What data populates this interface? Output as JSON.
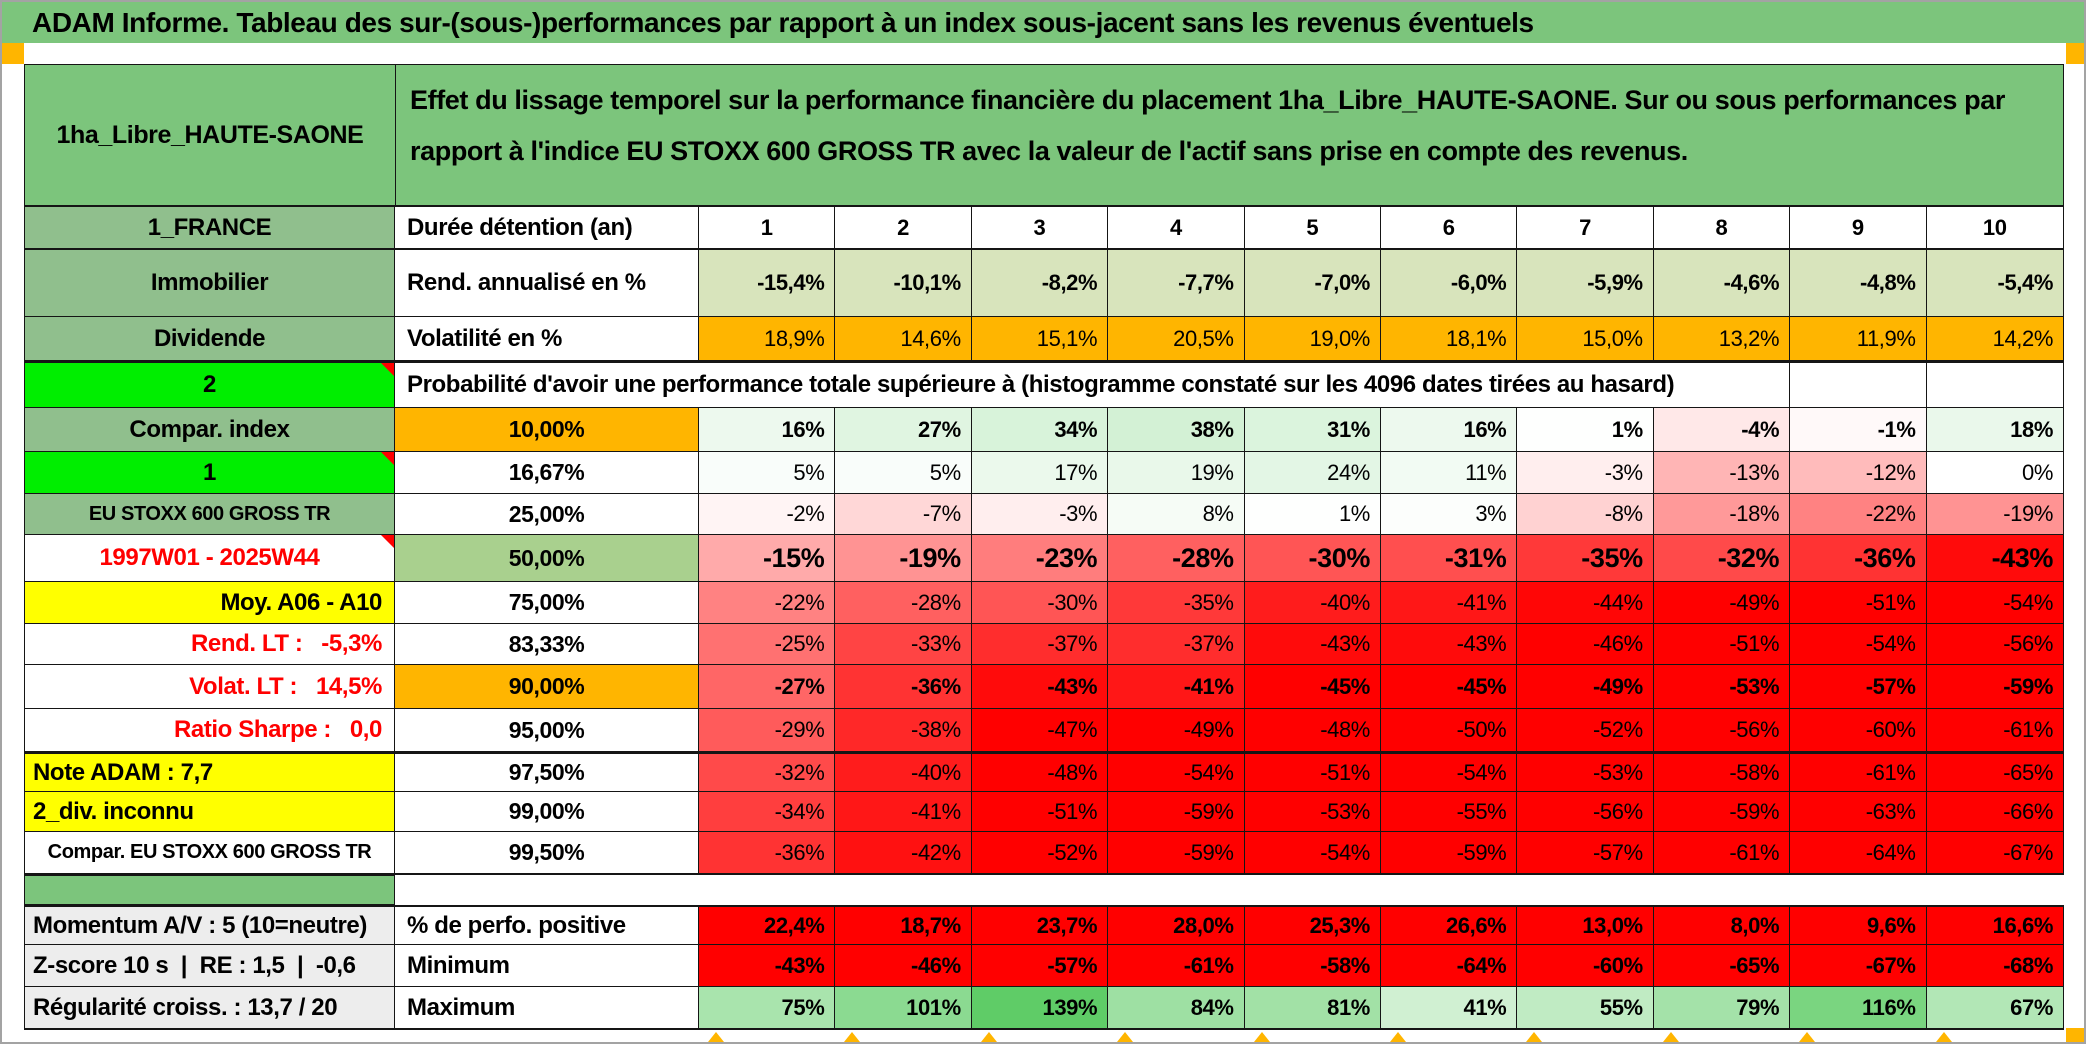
{
  "window": {
    "title": "ADAM Informe. Tableau des sur-(sous-)performances par rapport à un index sous-jacent sans les revenus éventuels"
  },
  "header": {
    "asset_name": "1ha_Libre_HAUTE-SAONE",
    "description": "Effet du lissage temporel sur la performance financière du placement 1ha_Libre_HAUTE-SAONE. Sur ou sous performances par rapport à l'indice EU STOXX 600 GROSS TR avec la valeur de l'actif sans prise en compte des revenus."
  },
  "colors": {
    "green_title": "#7CC57C",
    "green_label": "#90BF8D",
    "bright_green": "#00EE00",
    "orange": "#FFB500",
    "yellow": "#FFFF00",
    "olive": "#A9D08E",
    "light_green": "#D8E4BC",
    "solid_red": "#FF0000",
    "scale_green_full": "#5ECC66",
    "gray_label": "#EDEDED",
    "red_text": "#FF0000"
  },
  "table": {
    "rows": [
      {
        "id": "duree-detention",
        "label": "1_FRANCE",
        "colb": "Durée détention (an)",
        "fill": "white",
        "values": [
          "1",
          "2",
          "3",
          "4",
          "5",
          "6",
          "7",
          "8",
          "9",
          "10"
        ]
      },
      {
        "id": "rend-annualise",
        "label": "Immobilier",
        "colb": "Rend. annualisé en %",
        "fill": "lightgreen",
        "values": [
          "-15,4%",
          "-10,1%",
          "-8,2%",
          "-7,7%",
          "-7,0%",
          "-6,0%",
          "-5,9%",
          "-4,6%",
          "-4,8%",
          "-5,4%"
        ]
      },
      {
        "id": "volatilite",
        "label": "Dividende",
        "colb": "Volatilité en %",
        "fill": "orange",
        "values": [
          "18,9%",
          "14,6%",
          "15,1%",
          "20,5%",
          "19,0%",
          "18,1%",
          "15,0%",
          "13,2%",
          "11,9%",
          "14,2%"
        ]
      },
      {
        "id": "proba-header",
        "label": "2",
        "text": "Probabilité d'avoir une performance totale supérieure à (histogramme constaté sur les 4096 dates tirées au hasard)"
      },
      {
        "id": "p10",
        "label": "Compar. index",
        "colb": "10,00%",
        "fill": "scale",
        "values": [
          "16%",
          "27%",
          "34%",
          "38%",
          "31%",
          "16%",
          "1%",
          "-4%",
          "-1%",
          "18%"
        ]
      },
      {
        "id": "p16",
        "label": "1",
        "colb": "16,67%",
        "fill": "scale",
        "values": [
          "5%",
          "5%",
          "17%",
          "19%",
          "24%",
          "11%",
          "-3%",
          "-13%",
          "-12%",
          "0%"
        ]
      },
      {
        "id": "p25",
        "label": "EU STOXX 600 GROSS TR",
        "colb": "25,00%",
        "fill": "scale",
        "values": [
          "-2%",
          "-7%",
          "-3%",
          "8%",
          "1%",
          "3%",
          "-8%",
          "-18%",
          "-22%",
          "-19%"
        ]
      },
      {
        "id": "p50",
        "label": "1997W01 - 2025W44",
        "colb": "50,00%",
        "fill": "scale",
        "values": [
          "-15%",
          "-19%",
          "-23%",
          "-28%",
          "-30%",
          "-31%",
          "-35%",
          "-32%",
          "-36%",
          "-43%"
        ]
      },
      {
        "id": "p75",
        "label": "Moy. A06 - A10",
        "colb": "75,00%",
        "fill": "scale",
        "values": [
          "-22%",
          "-28%",
          "-30%",
          "-35%",
          "-40%",
          "-41%",
          "-44%",
          "-49%",
          "-51%",
          "-54%"
        ]
      },
      {
        "id": "p83",
        "label": "Rend. LT :   -5,3%",
        "colb": "83,33%",
        "fill": "scale",
        "values": [
          "-25%",
          "-33%",
          "-37%",
          "-37%",
          "-43%",
          "-43%",
          "-46%",
          "-51%",
          "-54%",
          "-56%"
        ]
      },
      {
        "id": "p90",
        "label": "Volat. LT :   14,5%",
        "colb": "90,00%",
        "fill": "scale",
        "values": [
          "-27%",
          "-36%",
          "-43%",
          "-41%",
          "-45%",
          "-45%",
          "-49%",
          "-53%",
          "-57%",
          "-59%"
        ]
      },
      {
        "id": "p95",
        "label": "Ratio Sharpe :   0,0",
        "colb": "95,00%",
        "fill": "scale",
        "values": [
          "-29%",
          "-38%",
          "-47%",
          "-49%",
          "-48%",
          "-50%",
          "-52%",
          "-56%",
          "-60%",
          "-61%"
        ]
      },
      {
        "id": "p975",
        "label": "Note ADAM : 7,7",
        "colb": "97,50%",
        "fill": "scale",
        "values": [
          "-32%",
          "-40%",
          "-48%",
          "-54%",
          "-51%",
          "-54%",
          "-53%",
          "-58%",
          "-61%",
          "-65%"
        ]
      },
      {
        "id": "p99",
        "label": "2_div. inconnu",
        "colb": "99,00%",
        "fill": "scale",
        "values": [
          "-34%",
          "-41%",
          "-51%",
          "-59%",
          "-53%",
          "-55%",
          "-56%",
          "-59%",
          "-63%",
          "-66%"
        ]
      },
      {
        "id": "p995",
        "label": "Compar. EU STOXX 600 GROSS TR",
        "colb": "99,50%",
        "fill": "scale",
        "values": [
          "-36%",
          "-42%",
          "-52%",
          "-59%",
          "-54%",
          "-59%",
          "-57%",
          "-61%",
          "-64%",
          "-67%"
        ]
      },
      {
        "id": "separator"
      },
      {
        "id": "perfo-positive",
        "label": "Momentum A/V : 5 (10=neutre)",
        "colb": "% de perfo. positive",
        "fill": "red",
        "values": [
          "22,4%",
          "18,7%",
          "23,7%",
          "28,0%",
          "25,3%",
          "26,6%",
          "13,0%",
          "8,0%",
          "9,6%",
          "16,6%"
        ]
      },
      {
        "id": "minimum",
        "label": "Z-score 10 s  |  RE : 1,5  |  -0,6",
        "colb": "Minimum",
        "fill": "red",
        "values": [
          "-43%",
          "-46%",
          "-57%",
          "-61%",
          "-58%",
          "-64%",
          "-60%",
          "-65%",
          "-67%",
          "-68%"
        ]
      },
      {
        "id": "maximum",
        "label": "Régularité croiss. : 13,7 / 20",
        "colb": "Maximum",
        "fill": "scale",
        "values": [
          "75%",
          "101%",
          "139%",
          "84%",
          "81%",
          "41%",
          "55%",
          "79%",
          "116%",
          "67%"
        ]
      }
    ]
  }
}
